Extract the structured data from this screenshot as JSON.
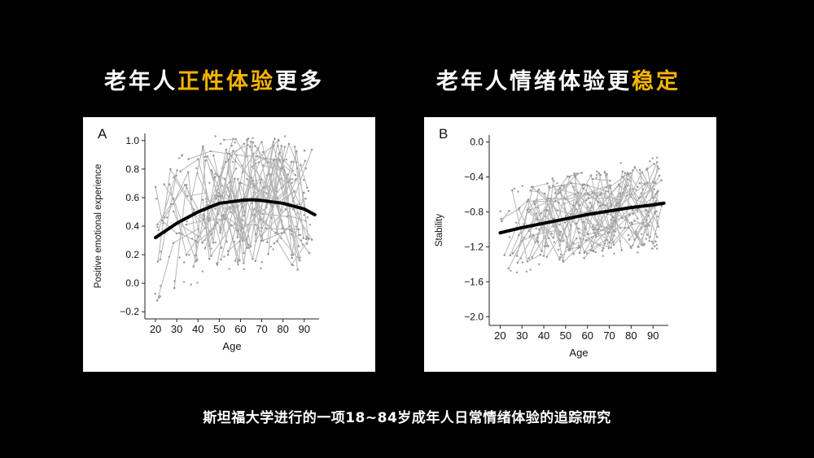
{
  "titles": {
    "left": {
      "pre": "老年人",
      "highlight": "正性体验",
      "post": "更多"
    },
    "right": {
      "pre": "老年人情绪体验更",
      "highlight": "稳定",
      "post": ""
    },
    "highlight_color": "#f5b400"
  },
  "caption": "斯坦福大学进行的一项18~84岁成年人日常情绪体验的追踪研究",
  "chart_data": [
    {
      "type": "scatter",
      "panel_label": "A",
      "xlabel": "Age",
      "ylabel": "Positive emotional experience",
      "xlim": [
        15,
        97
      ],
      "ylim": [
        -0.25,
        1.05
      ],
      "xticks": [
        20,
        30,
        40,
        50,
        60,
        70,
        80,
        90
      ],
      "yticks": [
        -0.2,
        0.0,
        0.2,
        0.4,
        0.6,
        0.8,
        1.0
      ],
      "ytick_labels": [
        "−0.2",
        "0.0",
        "0.2",
        "0.4",
        "0.6",
        "0.8",
        "1.0"
      ],
      "trend": {
        "x": [
          20,
          30,
          40,
          50,
          60,
          65,
          70,
          80,
          90,
          95
        ],
        "y": [
          0.32,
          0.42,
          0.5,
          0.56,
          0.58,
          0.585,
          0.58,
          0.56,
          0.52,
          0.48
        ]
      },
      "raw_color": "#b5b5b5",
      "trend_color": "#000000"
    },
    {
      "type": "scatter",
      "panel_label": "B",
      "xlabel": "Age",
      "ylabel": "Stability",
      "xlim": [
        15,
        97
      ],
      "ylim": [
        -2.1,
        0.08
      ],
      "xticks": [
        20,
        30,
        40,
        50,
        60,
        70,
        80,
        90
      ],
      "yticks": [
        0.0,
        -0.4,
        -0.8,
        -1.2,
        -1.6,
        -2.0
      ],
      "ytick_labels": [
        "0.0",
        "−0.4",
        "−0.8",
        "−1.2",
        "−1.6",
        "−2.0"
      ],
      "trend": {
        "x": [
          20,
          30,
          40,
          50,
          60,
          70,
          80,
          90,
          95
        ],
        "y": [
          -1.04,
          -0.98,
          -0.93,
          -0.88,
          -0.83,
          -0.79,
          -0.75,
          -0.72,
          -0.7
        ]
      },
      "raw_color": "#b5b5b5",
      "trend_color": "#000000"
    }
  ]
}
